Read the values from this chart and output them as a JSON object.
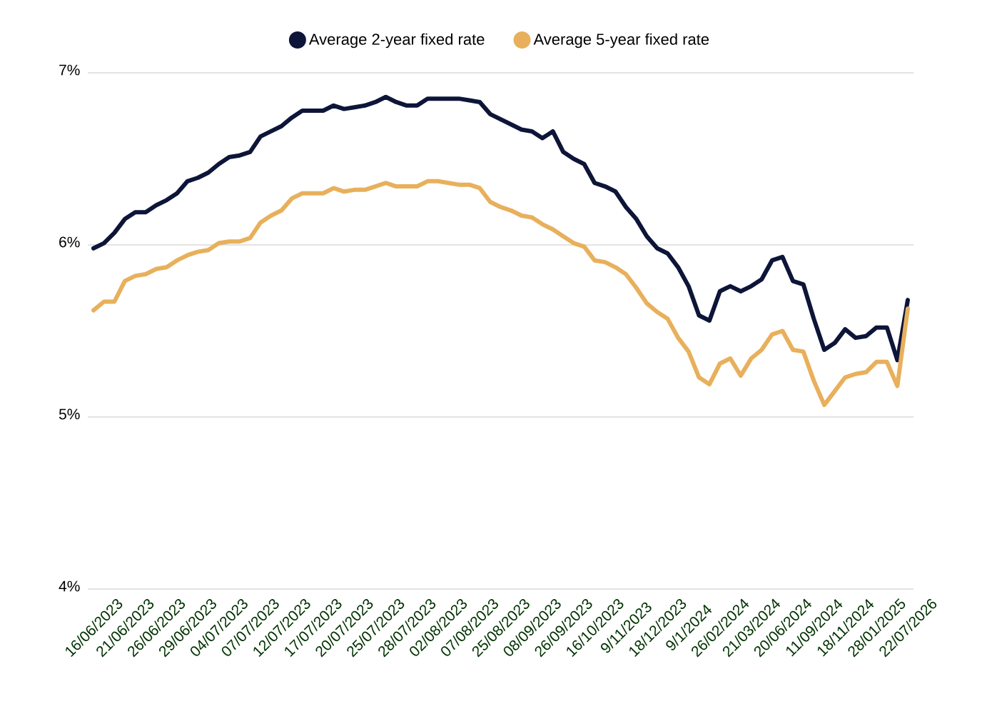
{
  "chart_data": {
    "type": "line",
    "categories": [
      "16/06/2023",
      null,
      null,
      "21/06/2023",
      null,
      null,
      "26/06/2023",
      null,
      null,
      "29/06/2023",
      null,
      null,
      "04/07/2023",
      null,
      null,
      "07/07/2023",
      null,
      null,
      "12/07/2023",
      null,
      null,
      "17/07/2023",
      null,
      null,
      "20/07/2023",
      null,
      null,
      "25/07/2023",
      null,
      null,
      "28/07/2023",
      null,
      null,
      "02/08/2023",
      null,
      null,
      "07/08/2023",
      null,
      null,
      "25/08/2023",
      null,
      null,
      "08/09/2023",
      null,
      null,
      "26/09/2023",
      null,
      null,
      "16/10/2023",
      null,
      null,
      "9/11/2023",
      null,
      null,
      "18/12/2023",
      null,
      null,
      "9/1/2024",
      null,
      null,
      "26/02/2024",
      null,
      null,
      "21/03/2024",
      null,
      null,
      "20/06/2024",
      null,
      null,
      "11/09/2024",
      null,
      null,
      "18/11/2024",
      null,
      null,
      "28/01/2025",
      null,
      null,
      "22/07/2026"
    ],
    "series": [
      {
        "name": "Average 2-year fixed rate",
        "color": "#0d1538",
        "values": [
          5.98,
          6.01,
          6.07,
          6.15,
          6.19,
          6.19,
          6.23,
          6.26,
          6.3,
          6.37,
          6.39,
          6.42,
          6.47,
          6.51,
          6.52,
          6.54,
          6.63,
          6.66,
          6.69,
          6.74,
          6.78,
          6.78,
          6.78,
          6.81,
          6.79,
          6.8,
          6.81,
          6.83,
          6.86,
          6.83,
          6.81,
          6.81,
          6.85,
          6.85,
          6.85,
          6.85,
          6.84,
          6.83,
          6.76,
          6.73,
          6.7,
          6.67,
          6.66,
          6.62,
          6.66,
          6.54,
          6.5,
          6.47,
          6.36,
          6.34,
          6.31,
          6.22,
          6.15,
          6.05,
          5.98,
          5.95,
          5.87,
          5.76,
          5.59,
          5.56,
          5.73,
          5.76,
          5.73,
          5.76,
          5.8,
          5.91,
          5.93,
          5.79,
          5.77,
          5.57,
          5.39,
          5.43,
          5.51,
          5.46,
          5.47,
          5.52,
          5.52,
          5.33,
          5.68
        ]
      },
      {
        "name": "Average 5-year fixed rate",
        "color": "#e8b05c",
        "values": [
          5.62,
          5.67,
          5.67,
          5.79,
          5.82,
          5.83,
          5.86,
          5.87,
          5.91,
          5.94,
          5.96,
          5.97,
          6.01,
          6.02,
          6.02,
          6.04,
          6.13,
          6.17,
          6.2,
          6.27,
          6.3,
          6.3,
          6.3,
          6.33,
          6.31,
          6.32,
          6.32,
          6.34,
          6.36,
          6.34,
          6.34,
          6.34,
          6.37,
          6.37,
          6.36,
          6.35,
          6.35,
          6.33,
          6.25,
          6.22,
          6.2,
          6.17,
          6.16,
          6.12,
          6.09,
          6.05,
          6.01,
          5.99,
          5.91,
          5.9,
          5.87,
          5.83,
          5.75,
          5.66,
          5.61,
          5.57,
          5.46,
          5.38,
          5.23,
          5.19,
          5.31,
          5.34,
          5.24,
          5.34,
          5.39,
          5.48,
          5.5,
          5.39,
          5.38,
          5.21,
          5.07,
          5.15,
          5.23,
          5.25,
          5.26,
          5.32,
          5.32,
          5.18,
          5.63
        ]
      }
    ],
    "ylim": [
      4,
      7
    ],
    "yticks": [
      {
        "value": 4,
        "label": "4%"
      },
      {
        "value": 5,
        "label": "5%"
      },
      {
        "value": 6,
        "label": "6%"
      },
      {
        "value": 7,
        "label": "7%"
      }
    ],
    "grid": "y",
    "legend": "top"
  }
}
